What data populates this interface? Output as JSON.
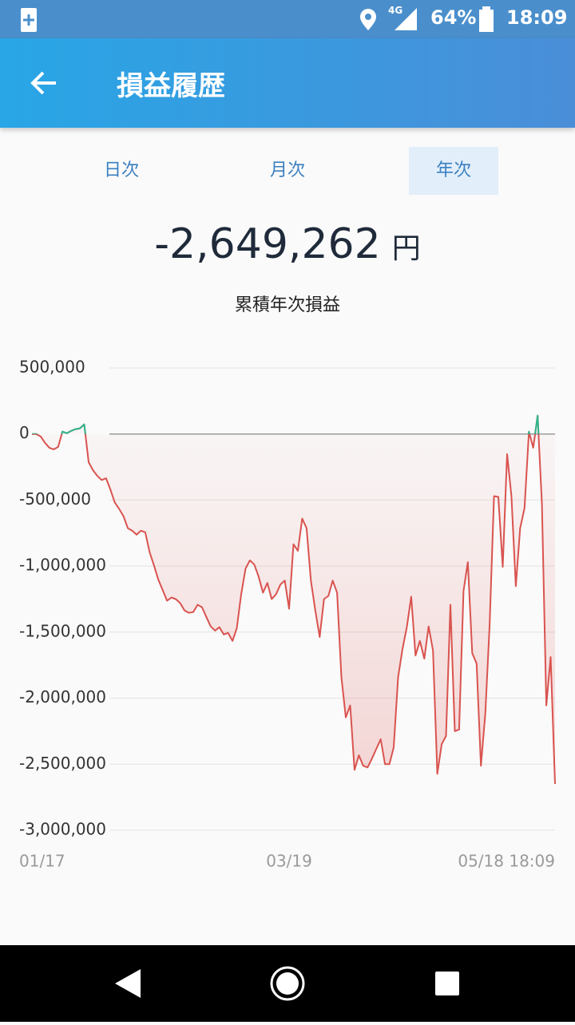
{
  "status_bar": {
    "network": "4G",
    "battery": "64%",
    "time": "18:09"
  },
  "app_bar": {
    "title": "損益履歴"
  },
  "tabs": {
    "items": [
      "日次",
      "月次",
      "年次"
    ],
    "selected": 2
  },
  "summary": {
    "value": "-2,649,262",
    "unit": "円",
    "label": "累積年次損益"
  },
  "chart_data": {
    "type": "line",
    "color": "#d9534f",
    "positive_color": "#2db68c",
    "fill": true,
    "categories": [
      "01/17",
      null,
      null,
      null,
      null,
      null,
      null,
      null,
      null,
      null,
      null,
      null,
      null,
      null,
      null,
      null,
      null,
      null,
      null,
      null,
      null,
      null,
      null,
      null,
      null,
      null,
      null,
      null,
      null,
      null,
      null,
      null,
      null,
      null,
      null,
      null,
      null,
      null,
      null,
      null,
      null,
      null,
      null,
      null,
      null,
      null,
      null,
      null,
      null,
      null,
      null,
      null,
      null,
      null,
      null,
      null,
      null,
      null,
      null,
      "03/19",
      null,
      null,
      null,
      null,
      null,
      null,
      null,
      null,
      null,
      null,
      null,
      null,
      null,
      null,
      null,
      null,
      null,
      null,
      null,
      null,
      null,
      null,
      null,
      null,
      null,
      null,
      null,
      null,
      null,
      null,
      null,
      null,
      null,
      null,
      null,
      null,
      null,
      null,
      null,
      null,
      null,
      null,
      null,
      null,
      null,
      null,
      null,
      null,
      null,
      null,
      null,
      null,
      null,
      null,
      null,
      null,
      null,
      null,
      null,
      null,
      "05/18 18:09"
    ],
    "values": [
      0,
      0,
      -18000,
      -67000,
      -104000,
      -116000,
      -98000,
      18000,
      6000,
      24000,
      37000,
      43000,
      73000,
      -213000,
      -274000,
      -317000,
      -348000,
      -335000,
      -421000,
      -518000,
      -567000,
      -622000,
      -713000,
      -732000,
      -762000,
      -732000,
      -744000,
      -896000,
      -994000,
      -1104000,
      -1183000,
      -1262000,
      -1238000,
      -1250000,
      -1280000,
      -1335000,
      -1354000,
      -1348000,
      -1293000,
      -1311000,
      -1384000,
      -1457000,
      -1488000,
      -1463000,
      -1518000,
      -1506000,
      -1567000,
      -1470000,
      -1213000,
      -1018000,
      -957000,
      -988000,
      -1079000,
      -1201000,
      -1128000,
      -1250000,
      -1213000,
      -1140000,
      -1110000,
      -1323000,
      -835000,
      -884000,
      -640000,
      -713000,
      -1110000,
      -1335000,
      -1537000,
      -1250000,
      -1226000,
      -1110000,
      -1201000,
      -1841000,
      -2146000,
      -2055000,
      -2543000,
      -2433000,
      -2512000,
      -2524000,
      -2457000,
      -2384000,
      -2311000,
      -2500000,
      -2500000,
      -2372000,
      -1841000,
      -1628000,
      -1463000,
      -1232000,
      -1677000,
      -1567000,
      -1701000,
      -1457000,
      -1640000,
      -2573000,
      -2348000,
      -2287000,
      -1293000,
      -2250000,
      -2238000,
      -1189000,
      -970000,
      -1659000,
      -1738000,
      -2512000,
      -2116000,
      -1445000,
      -470000,
      -476000,
      -1006000,
      -152000,
      -470000,
      -1152000,
      -713000,
      -561000,
      18000,
      -104000,
      140000,
      -530000,
      -2055000,
      -1689000,
      -2649262
    ],
    "ylim": [
      -3000000,
      500000
    ],
    "yticks": [
      {
        "value": -3000000,
        "label": "-3,000,000"
      },
      {
        "value": -2500000,
        "label": "-2,500,000"
      },
      {
        "value": -2000000,
        "label": "-2,000,000"
      },
      {
        "value": -1500000,
        "label": "-1,500,000"
      },
      {
        "value": -1000000,
        "label": "-1,000,000"
      },
      {
        "value": -500000,
        "label": "-500,000"
      },
      0,
      {
        "value": 500000,
        "label": "500,000"
      }
    ],
    "grid": true
  }
}
